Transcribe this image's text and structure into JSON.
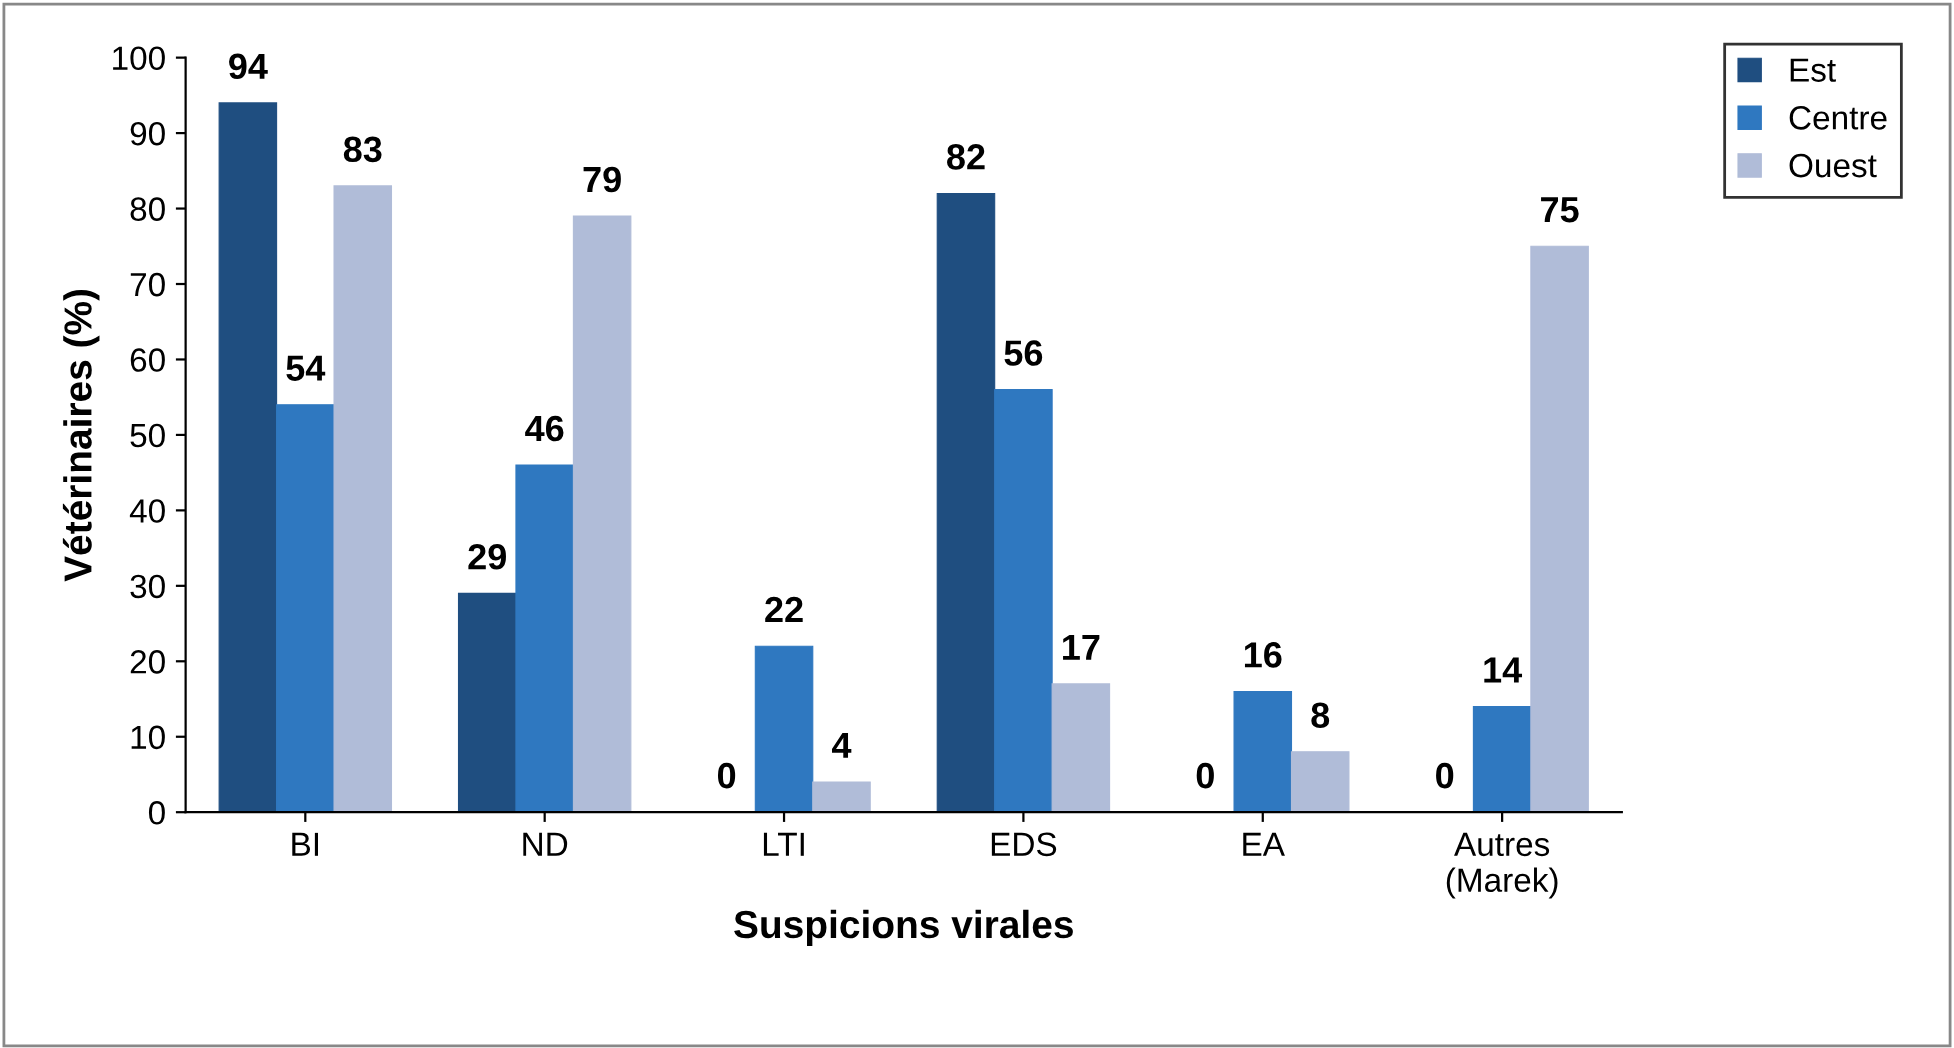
{
  "chart_data": {
    "type": "bar",
    "xlabel": "Suspicions virales",
    "ylabel": "Vétérinaires (%)",
    "categories": [
      "BI",
      "ND",
      "LTI",
      "EDS",
      "EA",
      "Autres\n(Marek)"
    ],
    "series": [
      {
        "name": "Est",
        "color": "#1f4e80",
        "values": [
          94,
          29,
          0,
          82,
          0,
          0
        ]
      },
      {
        "name": "Centre",
        "color": "#2f78c0",
        "values": [
          54,
          46,
          22,
          56,
          16,
          14
        ]
      },
      {
        "name": "Ouest",
        "color": "#b0bcd8",
        "values": [
          83,
          79,
          4,
          17,
          8,
          75
        ]
      }
    ],
    "ylim": [
      0,
      100
    ],
    "yticks": [
      0,
      10,
      20,
      30,
      40,
      50,
      60,
      70,
      80,
      90,
      100
    ],
    "data_labels": true,
    "grid": false,
    "legend": "top right"
  }
}
